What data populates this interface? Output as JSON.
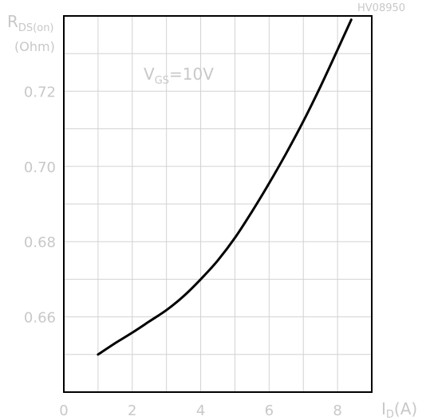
{
  "reference_code": "HV08950",
  "chart_data": {
    "type": "line",
    "ylabel": {
      "main": "R",
      "sub": "DS(on)",
      "unit": "(Ohm)"
    },
    "xlabel": {
      "main": "I",
      "sub": "D",
      "unit": "(A)"
    },
    "annotation": {
      "main": "V",
      "sub": "GS",
      "rest": "=10V"
    },
    "xlim": [
      0,
      9
    ],
    "ylim": [
      0.64,
      0.74
    ],
    "x_ticks": [
      {
        "value": 0,
        "label": "0"
      },
      {
        "value": 2,
        "label": "2"
      },
      {
        "value": 4,
        "label": "4"
      },
      {
        "value": 6,
        "label": "6"
      },
      {
        "value": 8,
        "label": "8"
      }
    ],
    "y_ticks": [
      {
        "value": 0.66,
        "label": "0.66"
      },
      {
        "value": 0.68,
        "label": "0.68"
      },
      {
        "value": 0.7,
        "label": "0.70"
      },
      {
        "value": 0.72,
        "label": "0.72"
      }
    ],
    "grid": true,
    "series": [
      {
        "color": "#000000",
        "x": [
          1.0,
          1.5,
          2.0,
          2.5,
          3.0,
          3.5,
          4.0,
          4.5,
          5.0,
          5.5,
          6.0,
          6.5,
          7.0,
          7.5,
          8.0,
          8.4
        ],
        "y": [
          0.65,
          0.653,
          0.6558,
          0.6588,
          0.6618,
          0.6655,
          0.67,
          0.675,
          0.681,
          0.688,
          0.6955,
          0.7035,
          0.712,
          0.7212,
          0.731,
          0.739
        ]
      }
    ]
  }
}
